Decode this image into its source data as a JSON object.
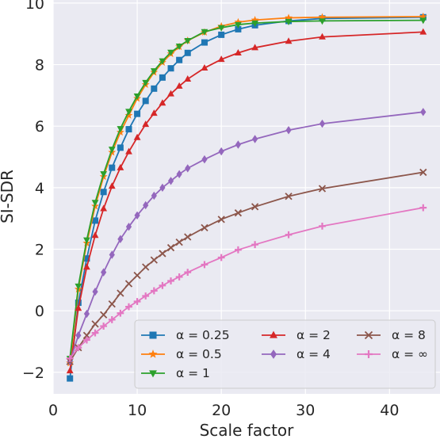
{
  "chart_data": {
    "type": "line",
    "xlabel": "Scale factor",
    "ylabel": "SI-SDR",
    "xlim": [
      0,
      46
    ],
    "ylim": [
      -2.7,
      10.1
    ],
    "xticks": [
      "0",
      "10",
      "20",
      "30",
      "40"
    ],
    "yticks": [
      "−2",
      "0",
      "2",
      "4",
      "6",
      "8",
      "10"
    ],
    "grid": true,
    "background": "#eaeaf2",
    "legend_location": "lower-right",
    "x": [
      2,
      3,
      4,
      5,
      6,
      7,
      8,
      9,
      10,
      11,
      12,
      13,
      14,
      15,
      16,
      18,
      20,
      22,
      24,
      28,
      32,
      44
    ],
    "series": [
      {
        "name": "α = 0.25",
        "color": "#1f77b4",
        "marker": "square",
        "values": [
          -2.2,
          0.26,
          1.7,
          2.93,
          3.86,
          4.65,
          5.3,
          5.9,
          6.4,
          6.82,
          7.22,
          7.58,
          7.88,
          8.15,
          8.38,
          8.72,
          8.97,
          9.15,
          9.28,
          9.42,
          9.5,
          9.54
        ]
      },
      {
        "name": "α = 0.5",
        "color": "#ff7f0e",
        "marker": "star",
        "values": [
          -1.7,
          0.7,
          2.2,
          3.4,
          4.36,
          5.15,
          5.8,
          6.35,
          6.9,
          7.35,
          7.75,
          8.07,
          8.35,
          8.58,
          8.78,
          9.05,
          9.25,
          9.38,
          9.45,
          9.52,
          9.54,
          9.56
        ]
      },
      {
        "name": "α = 1",
        "color": "#2ca02c",
        "marker": "triangle-down",
        "values": [
          -1.55,
          0.8,
          2.3,
          3.52,
          4.45,
          5.25,
          5.92,
          6.48,
          6.98,
          7.42,
          7.8,
          8.12,
          8.4,
          8.6,
          8.78,
          9.07,
          9.2,
          9.3,
          9.35,
          9.4,
          9.42,
          9.44
        ]
      },
      {
        "name": "α = 2",
        "color": "#d62728",
        "marker": "triangle-up",
        "values": [
          -1.95,
          0.08,
          1.42,
          2.45,
          3.32,
          4.05,
          4.65,
          5.17,
          5.63,
          6.06,
          6.42,
          6.75,
          7.05,
          7.3,
          7.53,
          7.89,
          8.17,
          8.38,
          8.55,
          8.76,
          8.9,
          9.06
        ]
      },
      {
        "name": "α = 4",
        "color": "#9467bd",
        "marker": "diamond",
        "values": [
          -1.65,
          -0.8,
          -0.1,
          0.62,
          1.25,
          1.82,
          2.33,
          2.73,
          3.1,
          3.43,
          3.74,
          4.0,
          4.22,
          4.44,
          4.63,
          4.92,
          5.18,
          5.4,
          5.58,
          5.87,
          6.08,
          6.46
        ]
      },
      {
        "name": "α = 8",
        "color": "#8c564b",
        "marker": "x",
        "values": [
          -1.65,
          -1.2,
          -0.8,
          -0.43,
          -0.13,
          0.22,
          0.57,
          0.88,
          1.15,
          1.42,
          1.65,
          1.86,
          2.05,
          2.23,
          2.4,
          2.7,
          2.97,
          3.18,
          3.38,
          3.72,
          3.97,
          4.5
        ]
      },
      {
        "name": "α = ∞",
        "color": "#e377c2",
        "marker": "plus",
        "values": [
          -1.55,
          -1.2,
          -0.95,
          -0.72,
          -0.5,
          -0.29,
          -0.08,
          0.13,
          0.3,
          0.48,
          0.65,
          0.82,
          0.97,
          1.1,
          1.25,
          1.5,
          1.73,
          1.98,
          2.15,
          2.47,
          2.75,
          3.35
        ]
      }
    ]
  }
}
